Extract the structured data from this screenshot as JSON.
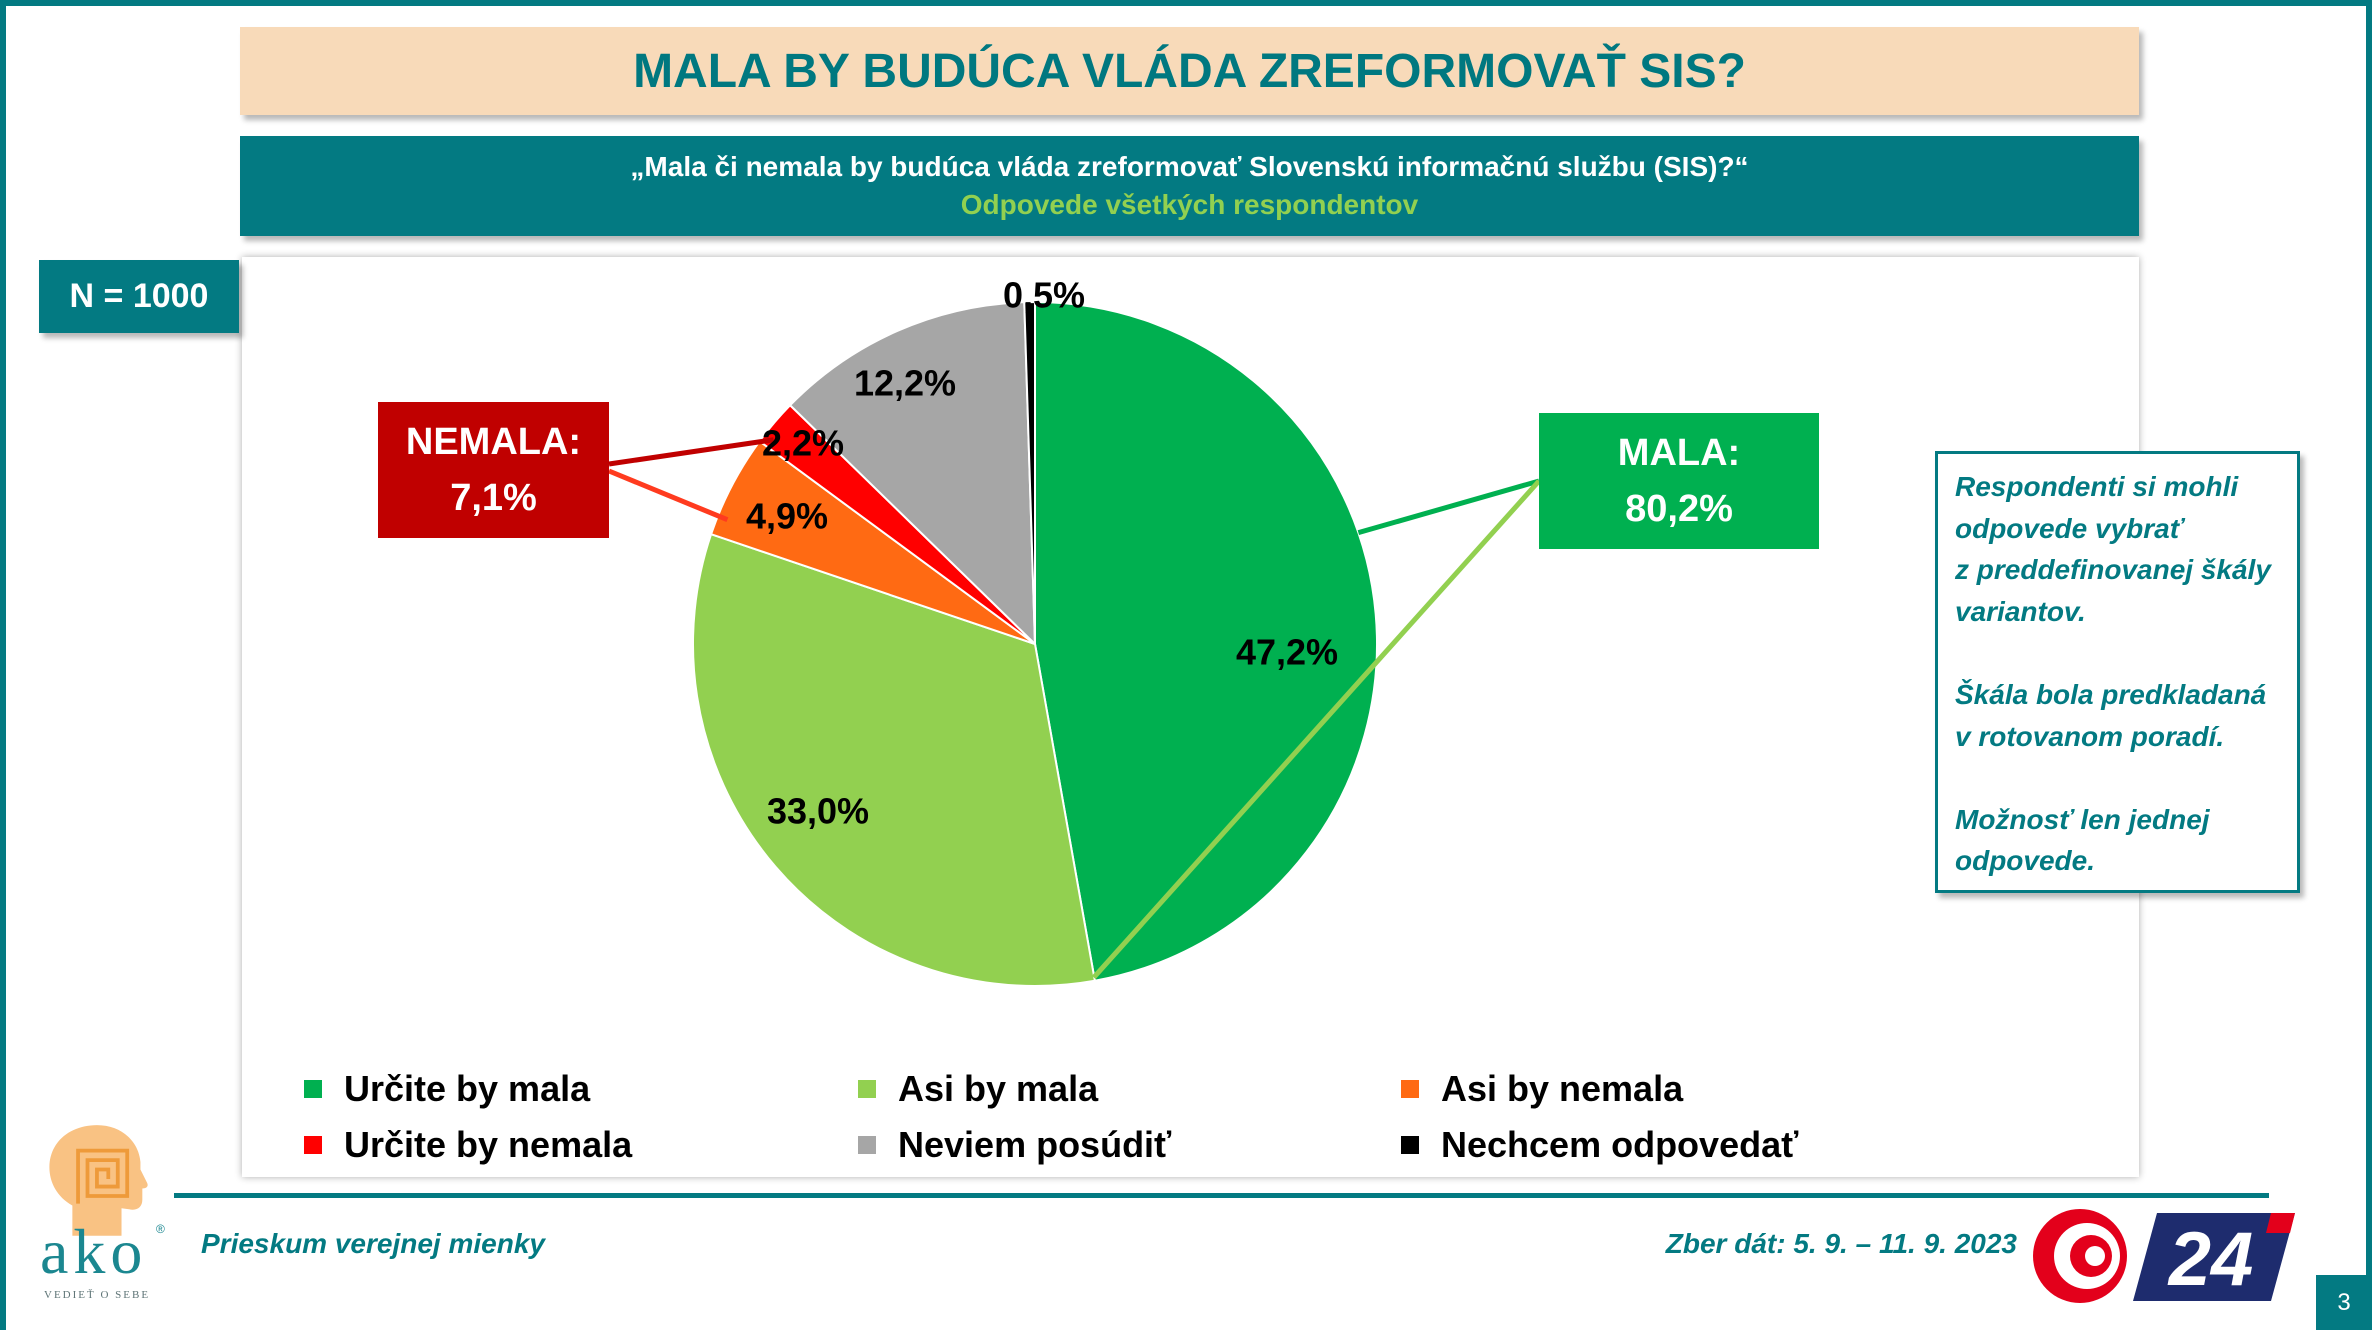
{
  "header": {
    "question": "„Mala či nemala by budúca vláda zreformovať Slovenskú informačnú službu (SIS)?“",
    "subtitle": "Odpovede všetkých respondentov"
  },
  "sample_size": "N = 1000",
  "chart_data": {
    "type": "pie",
    "title": "MALA BY BUDÚCA VLÁDA ZREFORMOVAŤ SIS?",
    "categories": [
      "Určite by mala",
      "Asi by mala",
      "Asi by nemala",
      "Určite by nemala",
      "Neviem posúdiť",
      "Nechcem odpovedať"
    ],
    "values": [
      47.2,
      33.0,
      4.9,
      2.2,
      12.2,
      0.5
    ],
    "data_labels": [
      "47,2%",
      "33,0%",
      "4,9%",
      "2,2%",
      "12,2%",
      "0,5%"
    ],
    "colors": [
      "#00B050",
      "#92D050",
      "#FF6A13",
      "#FF0000",
      "#A6A6A6",
      "#000000"
    ],
    "legend": "bottom",
    "annotations": [
      {
        "label": "NEMALA:",
        "value": "7,1%",
        "color": "#C00000",
        "line_colors": [
          "#C00000",
          "#FF3B1F"
        ]
      },
      {
        "label": "MALA:",
        "value": "80,2%",
        "color": "#00B050",
        "line_colors": [
          "#00B050",
          "#92D050"
        ]
      }
    ]
  },
  "note": {
    "paragraphs": [
      [
        "Respondenti si mohli",
        "odpovede vybrať",
        "z preddefinovanej škály",
        "variantov."
      ],
      [
        "Škála bola predkladaná",
        "v rotovanom poradí."
      ],
      [
        "Možnosť len jednej",
        "odpovede."
      ]
    ]
  },
  "footer": {
    "survey": "Prieskum verejnej mienky",
    "collection_dates": "Zber dát: 5. 9. – 11. 9. 2023"
  },
  "logos": {
    "ako": {
      "icon": "head-labyrinth-icon",
      "brand": "ako",
      "registered": "®",
      "tagline": "VEDIEŤ O SEBE"
    },
    "tv": {
      "icon": "red-spiral-icon",
      "text": "24"
    }
  },
  "page_number": "3",
  "theme": {
    "teal": "#037A82",
    "peach": "#F8DAB9",
    "subtitle_green": "#92D050",
    "title_teal": "#007880"
  }
}
